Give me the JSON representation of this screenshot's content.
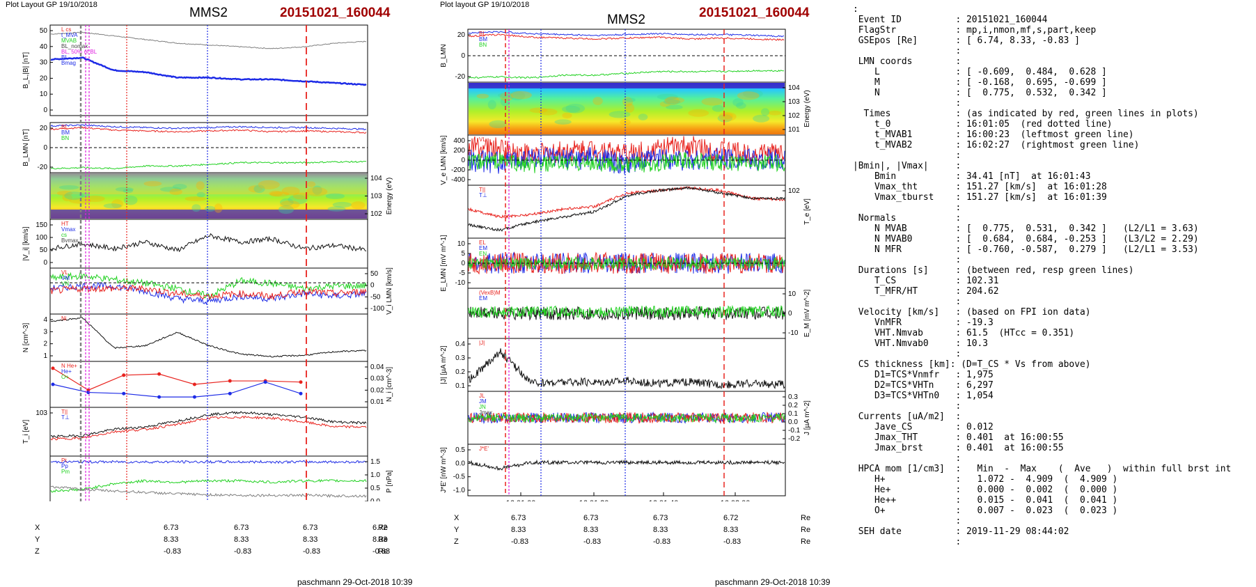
{
  "header": {
    "left_layout": "Plot Layout GP 19/10/2018",
    "right_layout": "Plot layout GP 19/10/2018",
    "spacecraft": "MMS2",
    "event": "20151021_160044",
    "footer": "paschmann 29-Oct-2018 10:39"
  },
  "colors": {
    "red": "#e8231e",
    "green": "#1fd11f",
    "blue": "#1d2be6",
    "black": "#111111",
    "gray": "#7f7f7f",
    "magenta": "#e020e0",
    "event_red": "#a00000"
  },
  "time_ticks": [
    "16:01:00",
    "16:01:20",
    "16:01:40",
    "16:02:00"
  ],
  "coords": {
    "labels": [
      "X",
      "Y",
      "Z"
    ],
    "unit": "Re",
    "left": [
      [
        "6.73",
        "6.73",
        "6.73",
        "6.72"
      ],
      [
        "8.33",
        "8.33",
        "8.33",
        "8.33"
      ],
      [
        "-0.83",
        "-0.83",
        "-0.83",
        "-0.83"
      ]
    ],
    "right": [
      [
        "6.73",
        "6.73",
        "6.73",
        "6.72"
      ],
      [
        "8.33",
        "8.33",
        "8.33",
        "8.33"
      ],
      [
        "-0.83",
        "-0.83",
        "-0.83",
        "-0.83"
      ]
    ]
  },
  "chart_data": [
    {
      "id": "L1",
      "type": "line",
      "ylabel": "B_L,|B| [nT]",
      "ylim": [
        0,
        50
      ],
      "yticks": [
        "50",
        "40",
        "30",
        "20",
        "10",
        "0"
      ],
      "legend": [
        "L cs",
        "t_MVA",
        "MVAB",
        "BL_nomax",
        "BL, 50% of BL",
        "BL",
        "Bmag"
      ],
      "series": [
        {
          "name": "|B|",
          "color": "gray",
          "approx_values_over_time": [
            45,
            46,
            44,
            42,
            40,
            39,
            38,
            37,
            38,
            40,
            41
          ]
        },
        {
          "name": "BL",
          "color": "blue",
          "approx_values_over_time": [
            31,
            32,
            25,
            24,
            21,
            21,
            20,
            20,
            19,
            18,
            17
          ]
        }
      ],
      "reference_line": 24.5
    },
    {
      "id": "L2",
      "type": "line",
      "ylabel": "B_LMN [nT]",
      "ylim": [
        -30,
        30
      ],
      "yticks": [
        "20",
        "0",
        "-20"
      ],
      "legend": [
        "BL",
        "BM",
        "BN"
      ],
      "series": [
        {
          "name": "BL",
          "color": "red",
          "approx_values_over_time": [
            22,
            24,
            21,
            20,
            19,
            20,
            21,
            19,
            20,
            19,
            18
          ]
        },
        {
          "name": "BM",
          "color": "blue",
          "approx_values_over_time": [
            26,
            27,
            25,
            24,
            23,
            24,
            25,
            24,
            24,
            23,
            22
          ]
        },
        {
          "name": "BN",
          "color": "green",
          "approx_values_over_time": [
            -25,
            -24,
            -25,
            -22,
            -22,
            -20,
            -18,
            -18,
            -18,
            -17,
            -17
          ]
        }
      ]
    },
    {
      "id": "L3",
      "type": "heatmap",
      "ylabel": "Energy (eV)",
      "yticks": [
        "10^4",
        "10^3",
        "10^2"
      ]
    },
    {
      "id": "L4",
      "type": "line",
      "ylabel": "|V_i| [km/s]",
      "ylim": [
        0,
        150
      ],
      "yticks": [
        "150",
        "100",
        "50",
        "0"
      ],
      "legend": [
        "HT",
        "Vmax",
        "cs",
        "Bvmax"
      ],
      "series": [
        {
          "name": "|Vi|",
          "color": "black",
          "approx_values_over_time": [
            60,
            75,
            60,
            80,
            55,
            100,
            80,
            90,
            60,
            70,
            55
          ]
        }
      ]
    },
    {
      "id": "L5",
      "type": "line",
      "ylabel": "V_i LMN [km/s]",
      "ylim": [
        -120,
        60
      ],
      "yticks": [
        "50",
        "0",
        "-50",
        "-100"
      ],
      "legend": [
        "VL",
        "VM",
        "VN"
      ],
      "series": [
        {
          "name": "VL",
          "color": "green",
          "approx_values_over_time": [
            20,
            30,
            15,
            0,
            -20,
            -50,
            10,
            0,
            -20,
            -10,
            -10
          ]
        },
        {
          "name": "VM",
          "color": "blue",
          "approx_values_over_time": [
            -20,
            -10,
            -10,
            -30,
            -60,
            -70,
            -50,
            -60,
            -40,
            -50,
            -40
          ]
        },
        {
          "name": "VN",
          "color": "red",
          "approx_values_over_time": [
            -30,
            -20,
            -20,
            -20,
            -40,
            -50,
            -40,
            -50,
            -30,
            -40,
            -30
          ]
        }
      ]
    },
    {
      "id": "L6",
      "type": "line",
      "ylabel": "N [cm^-3]",
      "ylim": [
        0.7,
        4.6
      ],
      "yticks": [
        "4",
        "3",
        "2",
        "1"
      ],
      "legend": [
        "Ni"
      ],
      "series": [
        {
          "name": "Ni",
          "color": "black",
          "approx_values_over_time": [
            4.0,
            4.3,
            1.8,
            2.0,
            3.1,
            2.0,
            1.3,
            1.1,
            1.2,
            1.5,
            1.6
          ]
        }
      ]
    },
    {
      "id": "L7",
      "type": "line",
      "ylabel": "N_i [cm^-3]",
      "ylim": [
        0,
        0.04
      ],
      "yticks": [
        "0.04",
        "0.03",
        "0.02",
        "0.01"
      ],
      "legend": [
        "N He+",
        "He+",
        "O+"
      ],
      "series": [
        {
          "name": "He++",
          "color": "red",
          "values": [
            0.034,
            0.015,
            0.028,
            0.029,
            0.02,
            0.023,
            0.023,
            0.022
          ]
        },
        {
          "name": "O+",
          "color": "blue",
          "values": [
            0.02,
            0.013,
            0.012,
            0.009,
            0.009,
            0.012,
            0.022,
            0.012
          ]
        }
      ]
    },
    {
      "id": "L8",
      "type": "line",
      "ylabel": "T_i [eV]",
      "yticks": [
        "10^3"
      ],
      "legend": [
        "T||",
        "T⊥"
      ],
      "series": [
        {
          "name": "T||",
          "color": "red",
          "approx_values_over_time": [
            0.35,
            0.37,
            0.5,
            0.55,
            0.65,
            0.78,
            0.8,
            0.78,
            0.7,
            0.6,
            0.6
          ]
        },
        {
          "name": "T⊥",
          "color": "black",
          "approx_values_over_time": [
            0.4,
            0.42,
            0.55,
            0.6,
            0.72,
            0.85,
            0.9,
            0.85,
            0.8,
            0.7,
            0.68
          ]
        }
      ]
    },
    {
      "id": "L9",
      "type": "line",
      "ylabel": "P [nPa]",
      "ylim": [
        0,
        1.75
      ],
      "yticks": [
        "1.5",
        "1.0",
        "0.5",
        "0.0"
      ],
      "legend": [
        "Pt",
        "Pp",
        "Pm"
      ],
      "series": [
        {
          "name": "Pt",
          "color": "blue",
          "approx_values_over_time": [
            1.55,
            1.55,
            1.55,
            1.55,
            1.55,
            1.55,
            1.55,
            1.55,
            1.55,
            1.55,
            1.55
          ]
        },
        {
          "name": "Pp",
          "color": "green",
          "approx_values_over_time": [
            0.55,
            0.6,
            0.8,
            0.9,
            0.85,
            0.9,
            0.9,
            0.85,
            0.9,
            0.9,
            0.9
          ]
        },
        {
          "name": "Pm",
          "color": "gray",
          "approx_values_over_time": [
            0.7,
            0.6,
            0.55,
            0.5,
            0.45,
            0.42,
            0.4,
            0.4,
            0.4,
            0.38,
            0.38
          ]
        }
      ]
    },
    {
      "id": "R1",
      "type": "line",
      "ylabel": "B_LMN",
      "ylim": [
        -30,
        30
      ],
      "yticks": [
        "20",
        "0",
        "-20"
      ],
      "legend": [
        "BL",
        "BM",
        "BN"
      ],
      "series": [
        {
          "name": "BL",
          "color": "red",
          "approx_values_over_time": [
            22,
            24,
            21,
            20,
            19,
            20,
            21,
            19,
            20,
            19,
            18
          ]
        },
        {
          "name": "BM",
          "color": "blue",
          "approx_values_over_time": [
            26,
            27,
            25,
            24,
            23,
            24,
            25,
            24,
            24,
            23,
            22
          ]
        },
        {
          "name": "BN",
          "color": "green",
          "approx_values_over_time": [
            -25,
            -24,
            -25,
            -22,
            -22,
            -20,
            -18,
            -18,
            -18,
            -17,
            -17
          ]
        }
      ]
    },
    {
      "id": "R2",
      "type": "heatmap",
      "ylabel": "Energy (eV)",
      "yticks": [
        "10^4",
        "10^3",
        "10^2",
        "10^1"
      ]
    },
    {
      "id": "R3",
      "type": "line",
      "ylabel": "V_e LMN [km/s]",
      "ylim": [
        -450,
        450
      ],
      "yticks": [
        "400",
        "200",
        "0",
        "-200",
        "-400"
      ],
      "legend": [
        "VL"
      ]
    },
    {
      "id": "R4",
      "type": "line",
      "ylabel": "T_e [eV]",
      "yticks": [
        "10^2"
      ],
      "legend": [
        "T||",
        "T⊥"
      ]
    },
    {
      "id": "R5",
      "type": "line",
      "ylabel": "E_LMN [mV m^-1]",
      "ylim": [
        -12,
        12
      ],
      "yticks": [
        "10",
        "5",
        "0",
        "-5",
        "-10"
      ],
      "legend": [
        "EL",
        "EM",
        "EN"
      ]
    },
    {
      "id": "R6",
      "type": "line",
      "ylabel": "E_M [mV m^-2]",
      "ylim": [
        -15,
        15
      ],
      "yticks": [
        "10",
        "0",
        "-10"
      ],
      "legend": [
        "(VexB)M",
        "EM"
      ]
    },
    {
      "id": "R7",
      "type": "line",
      "ylabel": "|J| [µA m^-2]",
      "ylim": [
        0,
        0.4
      ],
      "yticks": [
        "0.4",
        "0.3",
        "0.2",
        "0.1"
      ],
      "legend": [
        "|J|"
      ]
    },
    {
      "id": "R8",
      "type": "line",
      "ylabel": "J [µA m^-2]",
      "ylim": [
        -0.3,
        0.3
      ],
      "yticks": [
        "0.3",
        "0.2",
        "0.1",
        "0.0",
        "-0.1",
        "-0.2"
      ],
      "legend": [
        "JL",
        "JM",
        "JN",
        "Jmax"
      ]
    },
    {
      "id": "R9",
      "type": "line",
      "ylabel": "J*E' [nW m^-3]",
      "ylim": [
        -1.1,
        0.6
      ],
      "yticks": [
        "0.5",
        "0.0",
        "-0.5",
        "-1.0"
      ],
      "legend": [
        "J*E'"
      ]
    }
  ],
  "info_table": [
    ":",
    " Event ID          : 20151021_160044",
    " FlagStr           : mp,i,nmon,mf,s,part,keep",
    " GSEpos [Re]       : [ 6.74, 8.33, -0.83 ]",
    "                   :",
    " LMN coords        :",
    "    L              : [ -0.609,  0.484,  0.628 ]",
    "    M              : [ -0.168,  0.695, -0.699 ]",
    "    N              : [  0.775,  0.532,  0.342 ]",
    "                   :",
    "  Times            : (as indicated by red, green lines in plots)",
    "    t_0            : 16:01:05  (red dotted line)",
    "    t_MVAB1        : 16:00:23  (leftmost green line)",
    "    t_MVAB2        : 16:02:27  (rightmost green line)",
    "                   :",
    "|Bmin|, |Vmax|     :",
    "    Bmin           : 34.41 [nT]  at 16:01:43",
    "    Vmax_tht       : 151.27 [km/s]  at 16:01:28",
    "    Vmax_tburst    : 151.27 [km/s]  at 16:01:39",
    "                   :",
    " Normals           :",
    "    N MVAB         : [  0.775,  0.531,  0.342 ]   (L2/L1 = 3.63)",
    "    N MVAB0        : [  0.684,  0.684, -0.253 ]   (L3/L2 = 2.29)",
    "    N MFR          : [ -0.760, -0.587,  0.279 ]   (L2/L1 = 3.53)",
    "                   :",
    " Durations [s]     : (between red, resp green lines)",
    "    T_CS           : 102.31",
    "    T_MFR/HT       : 204.62",
    "                   :",
    " Velocity [km/s]   : (based on FPI ion data)",
    "    VnMFR          : -19.3",
    "    VHT.Nmvab      : 61.5  (HTcc = 0.351)",
    "    VHT.Nmvab0     : 10.3",
    "                   :",
    " CS thickness [km]: (D=T_CS * Vs from above)",
    "    D1=TCS*Vnmfr   : 1,975",
    "    D2=TCS*VHTn    : 6,297",
    "    D3=TCS*VHTn0   : 1,054",
    "                   :",
    " Currents [uA/m2]  :",
    "    Jave_CS        : 0.012",
    "    Jmax_THT       : 0.401  at 16:00:55",
    "    Jmax_brst      : 0.401  at 16:00:55",
    "                   :",
    " HPCA mom [1/cm3]  :   Min  -  Max    (  Ave   )  within full brst int",
    "    H+             :   1.072 -  4.909  (  4.909 )",
    "    He+            :   0.000 -  0.002  (  0.000 )",
    "    He++           :   0.015 -  0.041  (  0.041 )",
    "    O+             :   0.007 -  0.023  (  0.023 )",
    "                   :",
    " SEH date          : 2019-11-29 08:44:02",
    "                   :"
  ]
}
